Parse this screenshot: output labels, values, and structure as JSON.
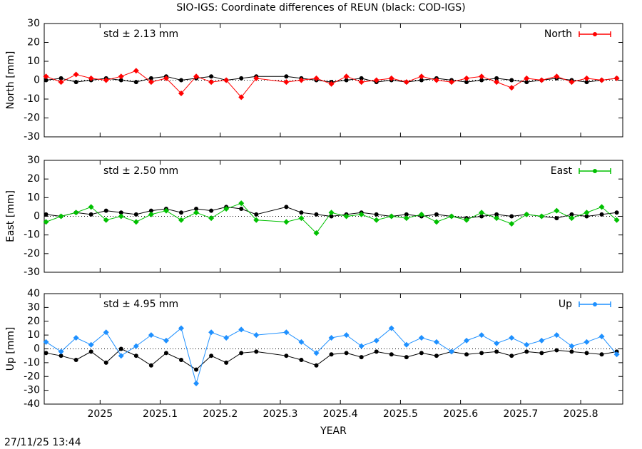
{
  "title": "SIO-IGS: Coordinate differences of REUN (black: COD-IGS)",
  "footer": "27/11/25 13:44",
  "chart_data": [
    {
      "type": "line",
      "ylabel": "North [mm]",
      "annotation": "std ± 2.13 mm",
      "xlim": [
        2024.907,
        2025.87
      ],
      "xticks": [
        2025,
        2025.1,
        2025.2,
        2025.3,
        2025.4,
        2025.5,
        2025.6,
        2025.7,
        2025.8
      ],
      "ylim": [
        -30,
        30
      ],
      "yticks": [
        -30,
        -20,
        -10,
        0,
        10,
        20,
        30
      ],
      "x": [
        2024.91,
        2024.935,
        2024.96,
        2024.985,
        2025.01,
        2025.035,
        2025.06,
        2025.085,
        2025.11,
        2025.135,
        2025.16,
        2025.185,
        2025.21,
        2025.235,
        2025.26,
        2025.31,
        2025.335,
        2025.36,
        2025.385,
        2025.41,
        2025.435,
        2025.46,
        2025.485,
        2025.51,
        2025.535,
        2025.56,
        2025.585,
        2025.61,
        2025.635,
        2025.66,
        2025.685,
        2025.71,
        2025.735,
        2025.76,
        2025.785,
        2025.81,
        2025.835,
        2025.86
      ],
      "series": [
        {
          "color": "#000000",
          "values": [
            0,
            1,
            -1,
            0,
            1,
            0,
            -1,
            1,
            2,
            0,
            1,
            2,
            0,
            1,
            2,
            2,
            1,
            0,
            -1,
            0,
            1,
            -1,
            0,
            -1,
            0,
            1,
            0,
            -1,
            0,
            1,
            0,
            -1,
            0,
            1,
            0,
            -1,
            0,
            1
          ]
        },
        {
          "name": "North",
          "color": "#ff0000",
          "values": [
            2,
            -1,
            3,
            1,
            0,
            2,
            5,
            -1,
            1,
            -7,
            2,
            -1,
            0,
            -9,
            1,
            -1,
            0,
            1,
            -2,
            2,
            -1,
            0,
            1,
            -1,
            2,
            0,
            -1,
            1,
            2,
            -1,
            -4,
            1,
            0,
            2,
            -1,
            1,
            0,
            1
          ]
        }
      ]
    },
    {
      "type": "line",
      "ylabel": "East [mm]",
      "annotation": "std ± 2.50 mm",
      "xlim": [
        2024.907,
        2025.87
      ],
      "xticks": [
        2025,
        2025.1,
        2025.2,
        2025.3,
        2025.4,
        2025.5,
        2025.6,
        2025.7,
        2025.8
      ],
      "ylim": [
        -30,
        30
      ],
      "yticks": [
        -30,
        -20,
        -10,
        0,
        10,
        20,
        30
      ],
      "x": [
        2024.91,
        2024.935,
        2024.96,
        2024.985,
        2025.01,
        2025.035,
        2025.06,
        2025.085,
        2025.11,
        2025.135,
        2025.16,
        2025.185,
        2025.21,
        2025.235,
        2025.26,
        2025.31,
        2025.335,
        2025.36,
        2025.385,
        2025.41,
        2025.435,
        2025.46,
        2025.485,
        2025.51,
        2025.535,
        2025.56,
        2025.585,
        2025.61,
        2025.635,
        2025.66,
        2025.685,
        2025.71,
        2025.735,
        2025.76,
        2025.785,
        2025.81,
        2025.835,
        2025.86
      ],
      "series": [
        {
          "color": "#000000",
          "values": [
            1,
            0,
            2,
            1,
            3,
            2,
            1,
            3,
            4,
            2,
            4,
            3,
            5,
            4,
            1,
            5,
            2,
            1,
            0,
            1,
            2,
            1,
            0,
            1,
            0,
            1,
            0,
            -1,
            0,
            1,
            0,
            1,
            0,
            -1,
            1,
            0,
            1,
            2
          ]
        },
        {
          "name": "East",
          "color": "#00c000",
          "values": [
            -3,
            0,
            2,
            5,
            -2,
            0,
            -3,
            1,
            3,
            -2,
            2,
            -1,
            4,
            7,
            -2,
            -3,
            -1,
            -9,
            2,
            0,
            1,
            -2,
            0,
            -1,
            1,
            -3,
            0,
            -2,
            2,
            -1,
            -4,
            1,
            0,
            3,
            -1,
            2,
            5,
            -2
          ]
        }
      ]
    },
    {
      "type": "line",
      "ylabel": "Up [mm]",
      "annotation": "std ± 4.95 mm",
      "xlabel": "YEAR",
      "xlim": [
        2024.907,
        2025.87
      ],
      "xticks": [
        2025,
        2025.1,
        2025.2,
        2025.3,
        2025.4,
        2025.5,
        2025.6,
        2025.7,
        2025.8
      ],
      "ylim": [
        -40,
        40
      ],
      "yticks": [
        -40,
        -30,
        -20,
        -10,
        0,
        10,
        20,
        30,
        40
      ],
      "x": [
        2024.91,
        2024.935,
        2024.96,
        2024.985,
        2025.01,
        2025.035,
        2025.06,
        2025.085,
        2025.11,
        2025.135,
        2025.16,
        2025.185,
        2025.21,
        2025.235,
        2025.26,
        2025.31,
        2025.335,
        2025.36,
        2025.385,
        2025.41,
        2025.435,
        2025.46,
        2025.485,
        2025.51,
        2025.535,
        2025.56,
        2025.585,
        2025.61,
        2025.635,
        2025.66,
        2025.685,
        2025.71,
        2025.735,
        2025.76,
        2025.785,
        2025.81,
        2025.835,
        2025.86
      ],
      "series": [
        {
          "color": "#000000",
          "values": [
            -3,
            -5,
            -8,
            -2,
            -10,
            0,
            -5,
            -12,
            -3,
            -8,
            -15,
            -5,
            -10,
            -3,
            -2,
            -5,
            -8,
            -12,
            -4,
            -3,
            -6,
            -2,
            -4,
            -6,
            -3,
            -5,
            -2,
            -4,
            -3,
            -2,
            -5,
            -2,
            -3,
            -1,
            -2,
            -3,
            -4,
            -2
          ]
        },
        {
          "name": "Up",
          "color": "#1e90ff",
          "values": [
            5,
            -2,
            8,
            3,
            12,
            -5,
            2,
            10,
            6,
            15,
            -25,
            12,
            8,
            14,
            10,
            12,
            5,
            -3,
            8,
            10,
            2,
            6,
            15,
            3,
            8,
            5,
            -2,
            6,
            10,
            4,
            8,
            3,
            6,
            10,
            2,
            5,
            9,
            -4
          ]
        }
      ]
    }
  ]
}
